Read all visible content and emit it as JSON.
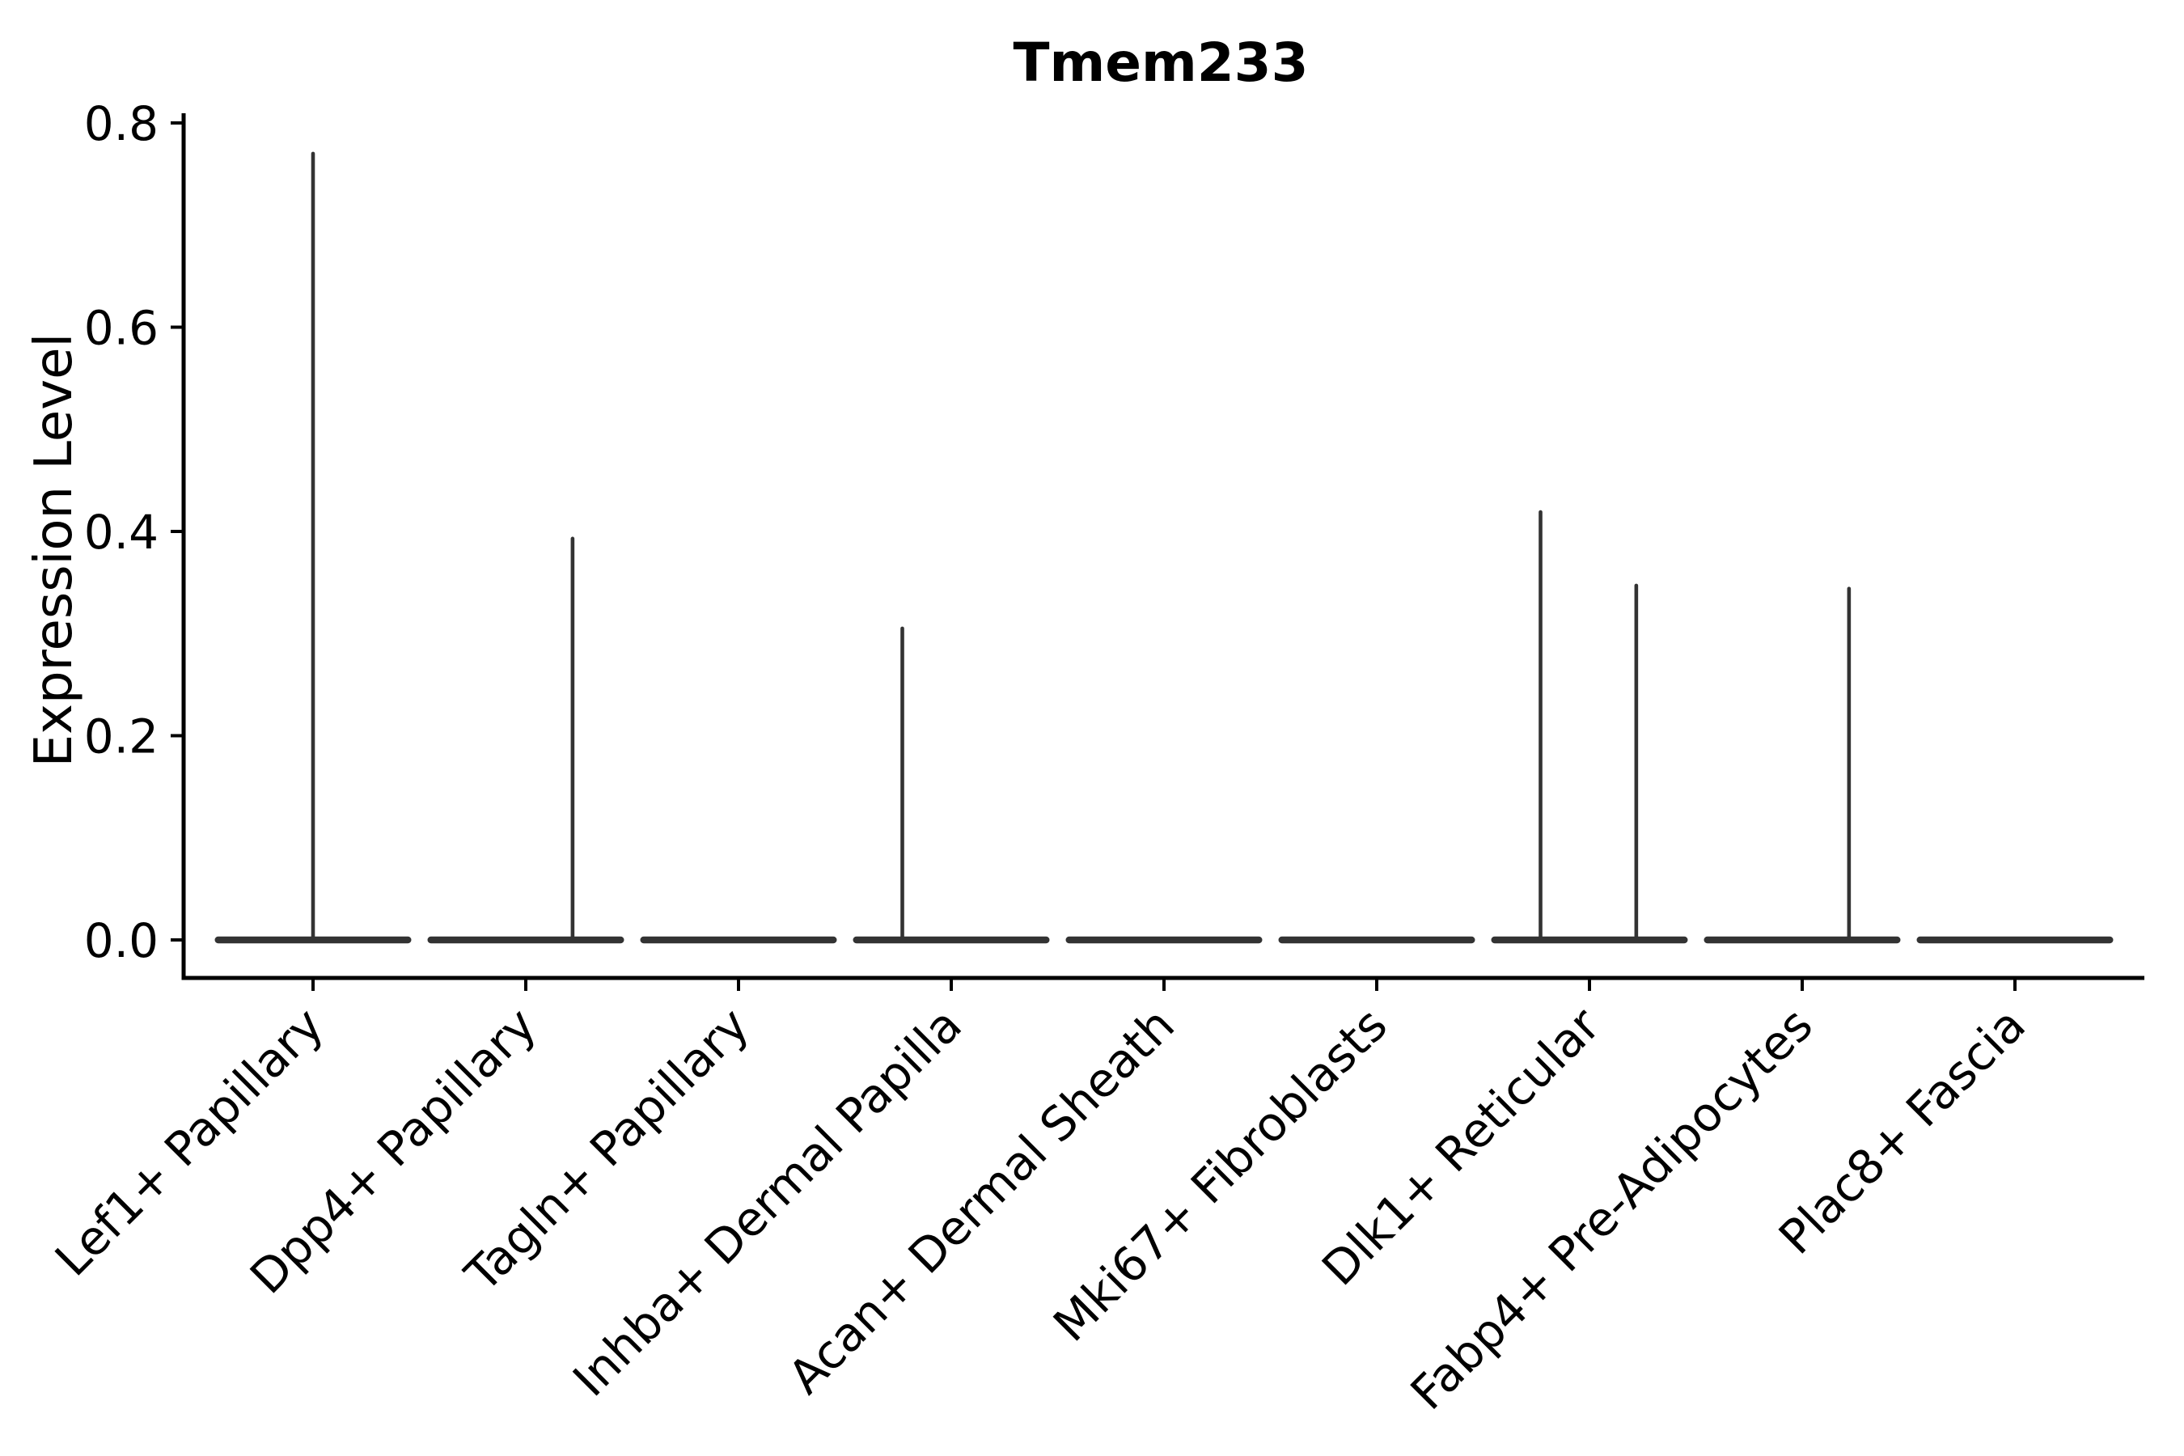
{
  "chart_data": {
    "type": "violin",
    "title": "Tmem233",
    "xlabel": "",
    "ylabel": "Expression Level",
    "ylim": [
      0,
      0.8
    ],
    "yticks": [
      0.0,
      0.2,
      0.4,
      0.6,
      0.8
    ],
    "ytick_labels": [
      "0.0",
      "0.2",
      "0.4",
      "0.6",
      "0.8"
    ],
    "categories": [
      "Lef1+ Papillary",
      "Dpp4+ Papillary",
      "Tagln+ Papillary",
      "Inhba+ Dermal Papilla",
      "Acan+ Dermal Sheath",
      "Mki67+ Fibroblasts",
      "Dlk1+ Reticular",
      "Fabp4+ Pre-Adipocytes",
      "Plac8+ Fascia"
    ],
    "legend": "none",
    "grid": false,
    "series": [
      {
        "category": "Lef1+ Papillary",
        "baseline_density": "flat-at-zero",
        "max_expression": 0.77,
        "spikes": [
          {
            "value": 0.77,
            "dx_frac": 0.0
          }
        ]
      },
      {
        "category": "Dpp4+ Papillary",
        "baseline_density": "flat-at-zero",
        "max_expression": 0.39,
        "spikes": [
          {
            "value": 0.393,
            "dx_frac": 0.22
          }
        ]
      },
      {
        "category": "Tagln+ Papillary",
        "baseline_density": "flat-at-zero",
        "max_expression": 0.0,
        "spikes": []
      },
      {
        "category": "Inhba+ Dermal Papilla",
        "baseline_density": "flat-at-zero",
        "max_expression": 0.31,
        "spikes": [
          {
            "value": 0.305,
            "dx_frac": -0.23
          }
        ]
      },
      {
        "category": "Acan+ Dermal Sheath",
        "baseline_density": "flat-at-zero",
        "max_expression": 0.0,
        "spikes": []
      },
      {
        "category": "Mki67+ Fibroblasts",
        "baseline_density": "flat-at-zero",
        "max_expression": 0.0,
        "spikes": []
      },
      {
        "category": "Dlk1+ Reticular",
        "baseline_density": "flat-at-zero",
        "max_expression": 0.42,
        "spikes": [
          {
            "value": 0.419,
            "dx_frac": -0.23
          },
          {
            "value": 0.347,
            "dx_frac": 0.22
          }
        ]
      },
      {
        "category": "Fabp4+ Pre-Adipocytes",
        "baseline_density": "flat-at-zero",
        "max_expression": 0.34,
        "spikes": [
          {
            "value": 0.344,
            "dx_frac": 0.22
          }
        ]
      },
      {
        "category": "Plac8+ Fascia",
        "baseline_density": "flat-at-zero",
        "max_expression": 0.0,
        "spikes": []
      }
    ],
    "style": {
      "violin_color": "#333333",
      "axis_color": "#000000",
      "background_color": "#ffffff",
      "text_color": "#000000"
    }
  }
}
